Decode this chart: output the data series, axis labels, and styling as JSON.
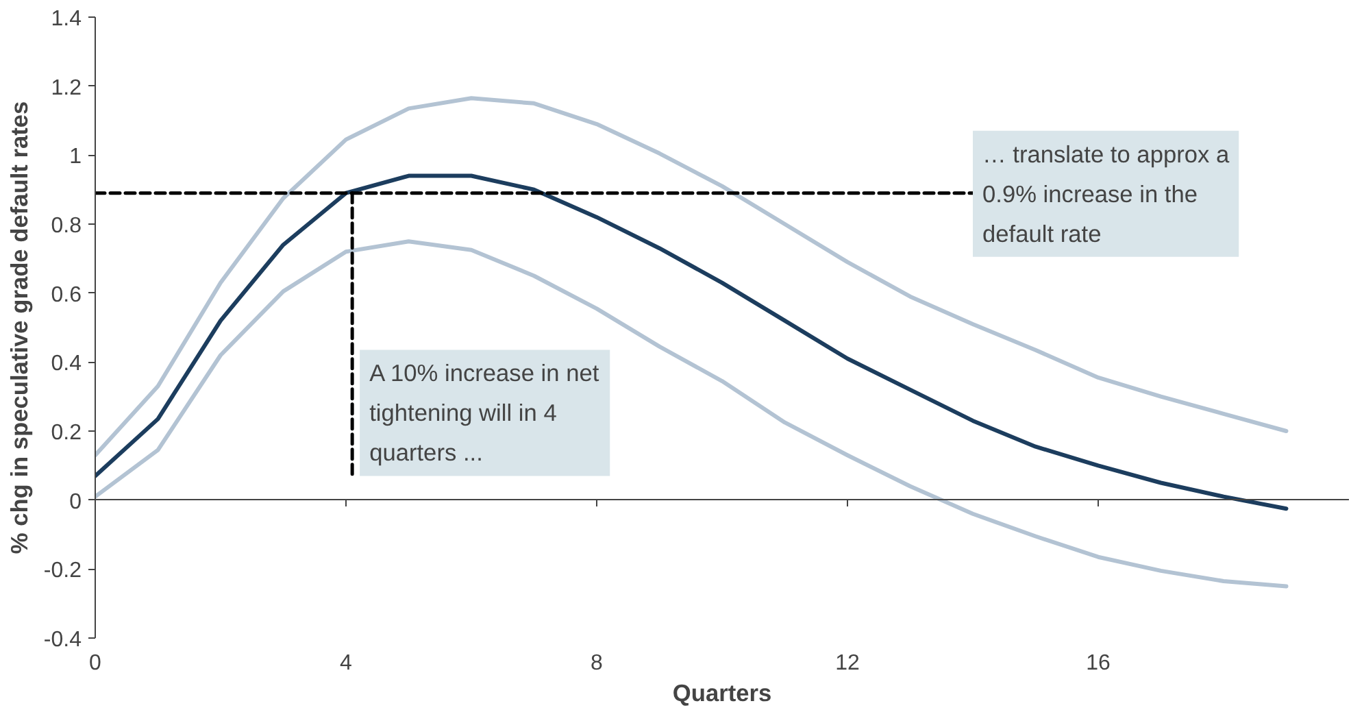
{
  "chart_data": {
    "type": "line",
    "xlabel": "Quarters",
    "ylabel": "% chg in speculative grade default rates",
    "x": [
      0,
      1,
      2,
      3,
      4,
      5,
      6,
      7,
      8,
      9,
      10,
      11,
      12,
      13,
      14,
      15,
      16,
      17,
      18,
      19
    ],
    "xlim": [
      0,
      20
    ],
    "xticks": [
      0,
      4,
      8,
      12,
      16
    ],
    "ylim": [
      -0.4,
      1.4
    ],
    "yticks": [
      -0.4,
      -0.2,
      0,
      0.2,
      0.4,
      0.6,
      0.8,
      1,
      1.2,
      1.4
    ],
    "marker": "none",
    "line_style": "solid",
    "series": [
      {
        "color": "#b3c3d3",
        "values": [
          0.13,
          0.33,
          0.63,
          0.875,
          1.045,
          1.135,
          1.165,
          1.15,
          1.09,
          1.005,
          0.91,
          0.8,
          0.69,
          0.59,
          0.51,
          0.435,
          0.355,
          0.3,
          0.25,
          0.2
        ]
      },
      {
        "color": "#b3c3d3",
        "values": [
          0.01,
          0.145,
          0.42,
          0.605,
          0.72,
          0.75,
          0.725,
          0.65,
          0.555,
          0.445,
          0.345,
          0.225,
          0.13,
          0.04,
          -0.04,
          -0.105,
          -0.165,
          -0.205,
          -0.235,
          -0.25
        ]
      },
      {
        "color": "#1c3d5e",
        "values": [
          0.07,
          0.235,
          0.52,
          0.74,
          0.89,
          0.94,
          0.94,
          0.9,
          0.82,
          0.73,
          0.63,
          0.52,
          0.41,
          0.32,
          0.23,
          0.155,
          0.1,
          0.05,
          0.01,
          -0.025
        ]
      },
      {
        "color": "#000000",
        "line_style": "dashed",
        "x": [
          0,
          14
        ],
        "values": [
          0.89,
          0.89
        ]
      },
      {
        "color": "#000000",
        "line_style": "dashed",
        "x": [
          4.1,
          4.1
        ],
        "values": [
          0.89,
          0.07
        ]
      }
    ],
    "annotations": [
      {
        "text": "A 10% increase in net tightening will in 4 quarters ...",
        "x": 4.1,
        "y": 0.07
      },
      "… translate to approx a 0.9% increase in the default rate"
    ]
  }
}
